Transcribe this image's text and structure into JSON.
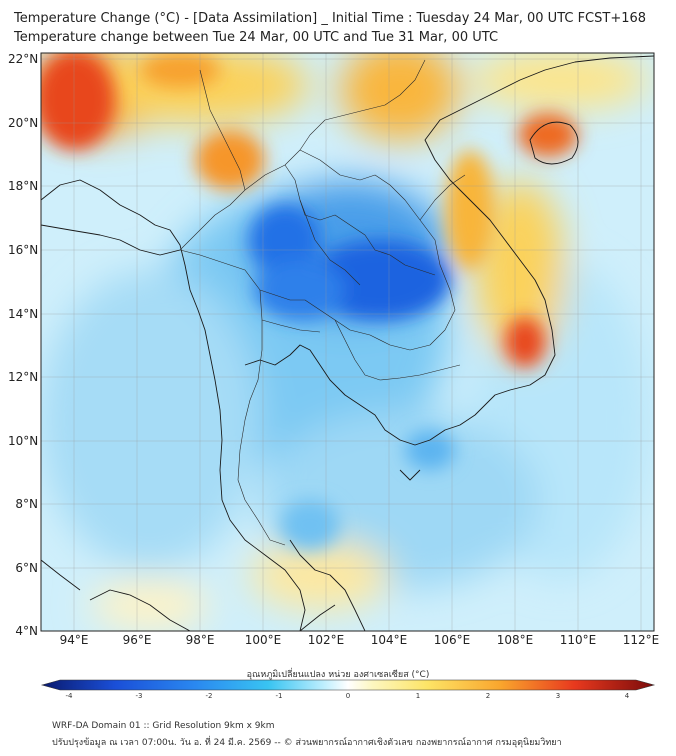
{
  "title_line1": "Temperature Change (°C) - [Data Assimilation] _ Initial Time : Tuesday 24 Mar, 00 UTC FCST+168",
  "title_line2": "Temperature change between Tue 24 Mar, 00 UTC and Tue 31 Mar, 00 UTC",
  "lat_labels": [
    "22°N",
    "20°N",
    "18°N",
    "16°N",
    "14°N",
    "12°N",
    "10°N",
    "8°N",
    "6°N",
    "4°N"
  ],
  "lon_labels": [
    "94°E",
    "96°E",
    "98°E",
    "100°E",
    "102°E",
    "104°E",
    "106°E",
    "108°E",
    "110°E",
    "112°E"
  ],
  "colorbar": {
    "label": "อุณหภูมิเปลี่ยนแปลง หน่วย องศาเซลเซียส (°C)",
    "ticks": [
      "-4",
      "-3",
      "-2",
      "-1",
      "0",
      "1",
      "2",
      "3",
      "4"
    ],
    "min": -4,
    "max": 4
  },
  "footer_line1": "WRF-DA Domain 01 :: Grid Resolution 9km x 9km",
  "footer_line2": "ปรับปรุงข้อมูล ณ เวลา 07:00น. วัน อ. ที่ 24 มี.ค. 2569 -- © ส่วนพยากรณ์อากาศเชิงตัวเลข กองพยากรณ์อากาศ กรมอุตุนิยมวิทยา"
}
